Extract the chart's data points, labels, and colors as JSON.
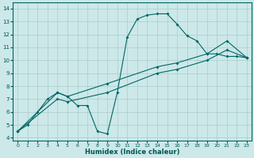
{
  "xlabel": "Humidex (Indice chaleur)",
  "bg_color": "#cce8e8",
  "grid_color": "#aacccc",
  "line_color": "#006666",
  "xlim": [
    -0.5,
    23.5
  ],
  "ylim": [
    3.8,
    14.5
  ],
  "xticks": [
    0,
    1,
    2,
    3,
    4,
    5,
    6,
    7,
    8,
    9,
    10,
    11,
    12,
    13,
    14,
    15,
    16,
    17,
    18,
    19,
    20,
    21,
    22,
    23
  ],
  "yticks": [
    4,
    5,
    6,
    7,
    8,
    9,
    10,
    11,
    12,
    13,
    14
  ],
  "line1_x": [
    0,
    1,
    2,
    3,
    4,
    5,
    6,
    7,
    8,
    9,
    10,
    11,
    12,
    13,
    14,
    15,
    16,
    17,
    18,
    19,
    20,
    21,
    22,
    23
  ],
  "line1_y": [
    4.5,
    5.0,
    6.0,
    7.0,
    7.5,
    7.2,
    6.5,
    6.5,
    4.5,
    4.3,
    7.5,
    11.8,
    13.2,
    13.5,
    13.6,
    13.6,
    12.8,
    11.9,
    11.5,
    10.5,
    10.5,
    10.3,
    10.3,
    10.2
  ],
  "line2_x": [
    0,
    4,
    5,
    9,
    14,
    16,
    19,
    21,
    23
  ],
  "line2_y": [
    4.5,
    7.5,
    7.2,
    8.2,
    9.5,
    9.8,
    10.5,
    11.5,
    10.2
  ],
  "line3_x": [
    0,
    4,
    5,
    9,
    14,
    16,
    19,
    21,
    23
  ],
  "line3_y": [
    4.5,
    7.0,
    6.8,
    7.5,
    9.0,
    9.3,
    10.0,
    10.8,
    10.2
  ]
}
